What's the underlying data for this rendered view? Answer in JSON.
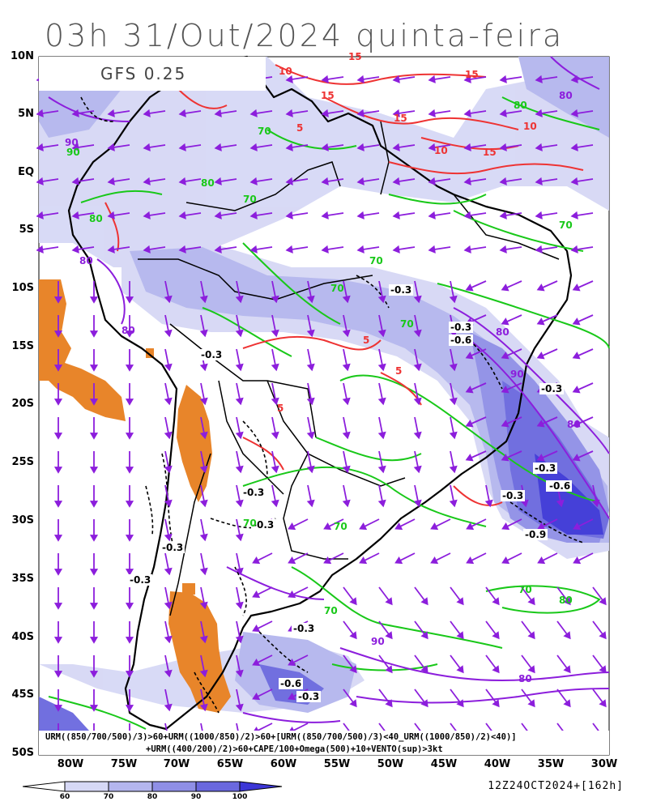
{
  "title": "03h 31/Out/2024 quinta-feira",
  "model_label": "GFS 0.25",
  "lat_labels": [
    "10N",
    "5N",
    "EQ",
    "5S",
    "10S",
    "15S",
    "20S",
    "25S",
    "30S",
    "35S",
    "40S",
    "45S",
    "50S"
  ],
  "lon_labels": [
    "80W",
    "75W",
    "70W",
    "65W",
    "60W",
    "55W",
    "50W",
    "45W",
    "40W",
    "35W",
    "30W"
  ],
  "legend_line1": "URM((850/700/500)/3)>60+URM((1000/850)/2)>60+[URM((850/700/500)/3)<40_URM((1000/850)/2)<40)]",
  "legend_line2": "+URM((400/200)/2)>60+CAPE/100+Omega(500)+10+VENTO(sup)>3kt",
  "run_info": "12Z24OCT2024+[162h]",
  "colorbar": {
    "ticks": [
      "60",
      "70",
      "80",
      "90",
      "100"
    ],
    "colors": [
      "#ffffff",
      "#d6d8f5",
      "#b4b6ee",
      "#8f8fe6",
      "#6a68de",
      "#3c36d6"
    ]
  },
  "contour_labels": {
    "omega": [
      "-0.3",
      "-0.3",
      "-0.6",
      "-0.3",
      "-0.3",
      "-0.3",
      "-0.6",
      "-0.3",
      "-0.6",
      "-0.9",
      "-0.3",
      "-0.3",
      "-0.3",
      "-0.3",
      "-0.3",
      "-0.6",
      "-0.3"
    ],
    "urm_green": [
      "70",
      "70",
      "70",
      "80",
      "90",
      "80",
      "80",
      "70",
      "70",
      "70",
      "70",
      "70",
      "80",
      "70",
      "70"
    ],
    "urm_purple": [
      "80",
      "80",
      "90",
      "80",
      "80",
      "90",
      "90",
      "80",
      "80"
    ],
    "cape_red": [
      "15",
      "10",
      "15",
      "5",
      "15",
      "10",
      "15",
      "10",
      "5",
      "5",
      "5",
      "15"
    ]
  },
  "colors": {
    "urm_green": "#19c819",
    "urm_purple": "#8c1edc",
    "cape_red": "#ee3333",
    "wind_vector": "#8c1edc",
    "dry_orange": "#e8852a",
    "omega": "#000000"
  }
}
